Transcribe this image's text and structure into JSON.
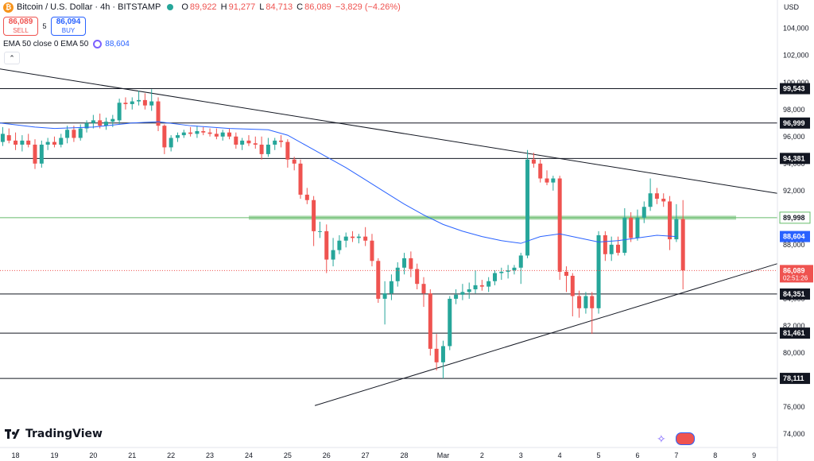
{
  "header": {
    "symbol": "Bitcoin / U.S. Dollar · 4h · BITSTAMP",
    "icon": "bitcoin-icon",
    "ohlc": {
      "o_label": "O",
      "o": "89,922",
      "h_label": "H",
      "h": "91,277",
      "l_label": "L",
      "l": "84,713",
      "c_label": "C",
      "c": "86,089",
      "change": "−3,829 (−4.26%)"
    }
  },
  "trade": {
    "sell_price": "86,089",
    "sell_label": "SELL",
    "spread": "5",
    "buy_price": "86,094",
    "buy_label": "BUY"
  },
  "indicator": {
    "label": "EMA 50 close 0 EMA 50",
    "value": "88,604"
  },
  "currency": "USD",
  "brand": "TradingView",
  "colors": {
    "up": "#26a69a",
    "down": "#ef5350",
    "ema": "#2962ff",
    "support_zone": "#66bb6a"
  },
  "chart_data": {
    "type": "candlestick",
    "x_ticks": [
      {
        "label": "18",
        "x": 0.0
      },
      {
        "label": "19",
        "x": 1.0
      },
      {
        "label": "20",
        "x": 2.0
      },
      {
        "label": "21",
        "x": 3.0
      },
      {
        "label": "22",
        "x": 4.0
      },
      {
        "label": "23",
        "x": 5.0
      },
      {
        "label": "24",
        "x": 6.0
      },
      {
        "label": "25",
        "x": 7.0
      },
      {
        "label": "26",
        "x": 8.0
      },
      {
        "label": "27",
        "x": 9.0
      },
      {
        "label": "28",
        "x": 10.0
      },
      {
        "label": "Mar",
        "x": 11.0
      },
      {
        "label": "2",
        "x": 12.0
      },
      {
        "label": "3",
        "x": 13.0
      },
      {
        "label": "4",
        "x": 14.0
      },
      {
        "label": "5",
        "x": 15.0
      },
      {
        "label": "6",
        "x": 16.0
      },
      {
        "label": "7",
        "x": 17.0
      },
      {
        "label": "8",
        "x": 18.0
      },
      {
        "label": "9",
        "x": 19.0
      }
    ],
    "y_ticks": [
      74000,
      76000,
      78000,
      80000,
      82000,
      84000,
      86000,
      88000,
      90000,
      92000,
      94000,
      96000,
      98000,
      100000,
      102000,
      104000
    ],
    "ylim": [
      73000,
      106100
    ],
    "xlim": [
      -0.4,
      19.6
    ],
    "candles": [
      {
        "x": -0.33,
        "o": 95600,
        "h": 96700,
        "l": 95300,
        "c": 96200
      },
      {
        "x": -0.17,
        "o": 96100,
        "h": 96600,
        "l": 95500,
        "c": 95700
      },
      {
        "x": 0.0,
        "o": 95700,
        "h": 96300,
        "l": 95000,
        "c": 95400
      },
      {
        "x": 0.17,
        "o": 95400,
        "h": 96100,
        "l": 94900,
        "c": 95700
      },
      {
        "x": 0.33,
        "o": 95700,
        "h": 96200,
        "l": 95200,
        "c": 95400
      },
      {
        "x": 0.5,
        "o": 95400,
        "h": 95800,
        "l": 93600,
        "c": 94000
      },
      {
        "x": 0.67,
        "o": 94000,
        "h": 95700,
        "l": 93700,
        "c": 95400
      },
      {
        "x": 0.83,
        "o": 95400,
        "h": 95900,
        "l": 95000,
        "c": 95600
      },
      {
        "x": 1.0,
        "o": 95600,
        "h": 96000,
        "l": 95200,
        "c": 95400
      },
      {
        "x": 1.17,
        "o": 95400,
        "h": 96200,
        "l": 95200,
        "c": 95900
      },
      {
        "x": 1.33,
        "o": 95900,
        "h": 96800,
        "l": 95500,
        "c": 96500
      },
      {
        "x": 1.5,
        "o": 96500,
        "h": 96800,
        "l": 95600,
        "c": 95900
      },
      {
        "x": 1.67,
        "o": 95900,
        "h": 96900,
        "l": 95700,
        "c": 96600
      },
      {
        "x": 1.83,
        "o": 96600,
        "h": 97200,
        "l": 96300,
        "c": 97000
      },
      {
        "x": 2.0,
        "o": 97000,
        "h": 97600,
        "l": 96600,
        "c": 97200
      },
      {
        "x": 2.17,
        "o": 97200,
        "h": 97700,
        "l": 96600,
        "c": 96800
      },
      {
        "x": 2.33,
        "o": 96800,
        "h": 97400,
        "l": 96500,
        "c": 97100
      },
      {
        "x": 2.5,
        "o": 97100,
        "h": 97600,
        "l": 96700,
        "c": 97300
      },
      {
        "x": 2.67,
        "o": 97200,
        "h": 98800,
        "l": 96900,
        "c": 98500
      },
      {
        "x": 2.83,
        "o": 98500,
        "h": 98900,
        "l": 98000,
        "c": 98400
      },
      {
        "x": 3.0,
        "o": 98400,
        "h": 98900,
        "l": 98000,
        "c": 98600
      },
      {
        "x": 3.17,
        "o": 98600,
        "h": 99400,
        "l": 98300,
        "c": 98700
      },
      {
        "x": 3.33,
        "o": 98700,
        "h": 99200,
        "l": 98000,
        "c": 98300
      },
      {
        "x": 3.5,
        "o": 98300,
        "h": 99500,
        "l": 97900,
        "c": 98600
      },
      {
        "x": 3.67,
        "o": 98600,
        "h": 98900,
        "l": 96400,
        "c": 96800
      },
      {
        "x": 3.83,
        "o": 96800,
        "h": 96900,
        "l": 94700,
        "c": 95200
      },
      {
        "x": 4.0,
        "o": 95200,
        "h": 96100,
        "l": 94900,
        "c": 95900
      },
      {
        "x": 4.17,
        "o": 95900,
        "h": 96300,
        "l": 95600,
        "c": 96100
      },
      {
        "x": 4.33,
        "o": 96100,
        "h": 96500,
        "l": 95900,
        "c": 96300
      },
      {
        "x": 4.5,
        "o": 96300,
        "h": 96700,
        "l": 96000,
        "c": 96200
      },
      {
        "x": 4.67,
        "o": 96200,
        "h": 96800,
        "l": 95900,
        "c": 96400
      },
      {
        "x": 4.83,
        "o": 96400,
        "h": 96700,
        "l": 96100,
        "c": 96300
      },
      {
        "x": 5.0,
        "o": 96300,
        "h": 96600,
        "l": 96000,
        "c": 96200
      },
      {
        "x": 5.17,
        "o": 96200,
        "h": 96600,
        "l": 95800,
        "c": 96000
      },
      {
        "x": 5.33,
        "o": 96000,
        "h": 96500,
        "l": 95700,
        "c": 96300
      },
      {
        "x": 5.5,
        "o": 96300,
        "h": 96600,
        "l": 95800,
        "c": 96000
      },
      {
        "x": 5.67,
        "o": 96000,
        "h": 96300,
        "l": 95100,
        "c": 95400
      },
      {
        "x": 5.83,
        "o": 95400,
        "h": 95900,
        "l": 95000,
        "c": 95700
      },
      {
        "x": 6.0,
        "o": 95700,
        "h": 96100,
        "l": 95300,
        "c": 95500
      },
      {
        "x": 6.17,
        "o": 95500,
        "h": 96000,
        "l": 95100,
        "c": 95400
      },
      {
        "x": 6.33,
        "o": 95400,
        "h": 96000,
        "l": 94300,
        "c": 94700
      },
      {
        "x": 6.5,
        "o": 94700,
        "h": 95900,
        "l": 94500,
        "c": 95400
      },
      {
        "x": 6.67,
        "o": 95400,
        "h": 95900,
        "l": 95000,
        "c": 95700
      },
      {
        "x": 6.83,
        "o": 95700,
        "h": 96100,
        "l": 95200,
        "c": 95600
      },
      {
        "x": 7.0,
        "o": 95600,
        "h": 95800,
        "l": 93700,
        "c": 94300
      },
      {
        "x": 7.17,
        "o": 94300,
        "h": 94500,
        "l": 93500,
        "c": 94000
      },
      {
        "x": 7.33,
        "o": 94000,
        "h": 94300,
        "l": 91400,
        "c": 91700
      },
      {
        "x": 7.5,
        "o": 91700,
        "h": 92200,
        "l": 91000,
        "c": 91300
      },
      {
        "x": 7.67,
        "o": 91300,
        "h": 91600,
        "l": 87900,
        "c": 89000
      },
      {
        "x": 7.83,
        "o": 89000,
        "h": 89700,
        "l": 88500,
        "c": 89000
      },
      {
        "x": 8.0,
        "o": 89000,
        "h": 89500,
        "l": 85900,
        "c": 86900
      },
      {
        "x": 8.17,
        "o": 86900,
        "h": 88500,
        "l": 86400,
        "c": 87600
      },
      {
        "x": 8.33,
        "o": 87600,
        "h": 88700,
        "l": 87300,
        "c": 88300
      },
      {
        "x": 8.5,
        "o": 88300,
        "h": 88900,
        "l": 87800,
        "c": 88600
      },
      {
        "x": 8.67,
        "o": 88600,
        "h": 89000,
        "l": 88200,
        "c": 88500
      },
      {
        "x": 8.83,
        "o": 88500,
        "h": 88800,
        "l": 88100,
        "c": 88600
      },
      {
        "x": 9.0,
        "o": 88600,
        "h": 89300,
        "l": 87900,
        "c": 88300
      },
      {
        "x": 9.17,
        "o": 88300,
        "h": 88800,
        "l": 86400,
        "c": 86800
      },
      {
        "x": 9.33,
        "o": 86800,
        "h": 87000,
        "l": 83700,
        "c": 84000
      },
      {
        "x": 9.5,
        "o": 84000,
        "h": 85300,
        "l": 82100,
        "c": 84400
      },
      {
        "x": 9.67,
        "o": 84400,
        "h": 85800,
        "l": 83900,
        "c": 85300
      },
      {
        "x": 9.83,
        "o": 85300,
        "h": 86700,
        "l": 84900,
        "c": 86300
      },
      {
        "x": 10.0,
        "o": 86300,
        "h": 87400,
        "l": 85800,
        "c": 87000
      },
      {
        "x": 10.17,
        "o": 87000,
        "h": 87500,
        "l": 85600,
        "c": 86200
      },
      {
        "x": 10.33,
        "o": 86200,
        "h": 86600,
        "l": 84700,
        "c": 85100
      },
      {
        "x": 10.5,
        "o": 85100,
        "h": 85600,
        "l": 83400,
        "c": 84400
      },
      {
        "x": 10.67,
        "o": 84400,
        "h": 84700,
        "l": 79800,
        "c": 80300
      },
      {
        "x": 10.83,
        "o": 80300,
        "h": 81400,
        "l": 78700,
        "c": 79300
      },
      {
        "x": 11.0,
        "o": 79300,
        "h": 80900,
        "l": 78100,
        "c": 80500
      },
      {
        "x": 11.17,
        "o": 80500,
        "h": 84200,
        "l": 80200,
        "c": 84000
      },
      {
        "x": 11.33,
        "o": 84000,
        "h": 84700,
        "l": 83600,
        "c": 84300
      },
      {
        "x": 11.5,
        "o": 84300,
        "h": 85100,
        "l": 83900,
        "c": 84500
      },
      {
        "x": 11.67,
        "o": 84500,
        "h": 85200,
        "l": 84000,
        "c": 84700
      },
      {
        "x": 11.83,
        "o": 84700,
        "h": 86100,
        "l": 84400,
        "c": 85000
      },
      {
        "x": 12.0,
        "o": 85000,
        "h": 85400,
        "l": 84600,
        "c": 84900
      },
      {
        "x": 12.17,
        "o": 84900,
        "h": 85600,
        "l": 84500,
        "c": 85300
      },
      {
        "x": 12.33,
        "o": 85300,
        "h": 86100,
        "l": 85000,
        "c": 85900
      },
      {
        "x": 12.5,
        "o": 85900,
        "h": 86300,
        "l": 85400,
        "c": 86000
      },
      {
        "x": 12.67,
        "o": 86000,
        "h": 86500,
        "l": 85500,
        "c": 86100
      },
      {
        "x": 12.83,
        "o": 86100,
        "h": 86500,
        "l": 85800,
        "c": 86300
      },
      {
        "x": 13.0,
        "o": 86300,
        "h": 87400,
        "l": 85100,
        "c": 87200
      },
      {
        "x": 13.17,
        "o": 87200,
        "h": 95000,
        "l": 87000,
        "c": 94300
      },
      {
        "x": 13.33,
        "o": 94300,
        "h": 94800,
        "l": 93700,
        "c": 94000
      },
      {
        "x": 13.5,
        "o": 94000,
        "h": 94300,
        "l": 92600,
        "c": 92900
      },
      {
        "x": 13.67,
        "o": 92900,
        "h": 93500,
        "l": 92400,
        "c": 92600
      },
      {
        "x": 13.83,
        "o": 92600,
        "h": 93100,
        "l": 92000,
        "c": 92900
      },
      {
        "x": 14.0,
        "o": 92900,
        "h": 93100,
        "l": 85400,
        "c": 86000
      },
      {
        "x": 14.17,
        "o": 86000,
        "h": 86400,
        "l": 84500,
        "c": 85700
      },
      {
        "x": 14.33,
        "o": 85700,
        "h": 85900,
        "l": 82700,
        "c": 84200
      },
      {
        "x": 14.5,
        "o": 84200,
        "h": 84600,
        "l": 82600,
        "c": 83300
      },
      {
        "x": 14.67,
        "o": 83300,
        "h": 84500,
        "l": 82900,
        "c": 84200
      },
      {
        "x": 14.83,
        "o": 84200,
        "h": 84500,
        "l": 81400,
        "c": 83300
      },
      {
        "x": 15.0,
        "o": 83300,
        "h": 89000,
        "l": 82900,
        "c": 88700
      },
      {
        "x": 15.17,
        "o": 88700,
        "h": 89000,
        "l": 86800,
        "c": 87300
      },
      {
        "x": 15.33,
        "o": 87300,
        "h": 88600,
        "l": 86800,
        "c": 88000
      },
      {
        "x": 15.5,
        "o": 88000,
        "h": 88600,
        "l": 87200,
        "c": 87400
      },
      {
        "x": 15.67,
        "o": 87400,
        "h": 90700,
        "l": 87200,
        "c": 90000
      },
      {
        "x": 15.83,
        "o": 90000,
        "h": 90400,
        "l": 88200,
        "c": 88500
      },
      {
        "x": 16.0,
        "o": 88500,
        "h": 90600,
        "l": 88300,
        "c": 90000
      },
      {
        "x": 16.17,
        "o": 90000,
        "h": 91200,
        "l": 89600,
        "c": 90800
      },
      {
        "x": 16.33,
        "o": 90800,
        "h": 92900,
        "l": 90500,
        "c": 91800
      },
      {
        "x": 16.5,
        "o": 91800,
        "h": 92200,
        "l": 91000,
        "c": 91400
      },
      {
        "x": 16.67,
        "o": 91400,
        "h": 91800,
        "l": 90800,
        "c": 91200
      },
      {
        "x": 16.83,
        "o": 91200,
        "h": 91600,
        "l": 87600,
        "c": 88400
      },
      {
        "x": 17.0,
        "o": 88400,
        "h": 91000,
        "l": 88200,
        "c": 89900
      },
      {
        "x": 17.17,
        "o": 89900,
        "h": 91300,
        "l": 84700,
        "c": 86100
      }
    ],
    "ema50": [
      {
        "x": -0.4,
        "y": 97000
      },
      {
        "x": 0.5,
        "y": 96700
      },
      {
        "x": 1.0,
        "y": 96600
      },
      {
        "x": 2.0,
        "y": 96700
      },
      {
        "x": 3.0,
        "y": 97000
      },
      {
        "x": 3.67,
        "y": 97100
      },
      {
        "x": 4.5,
        "y": 96800
      },
      {
        "x": 5.5,
        "y": 96600
      },
      {
        "x": 6.5,
        "y": 96500
      },
      {
        "x": 7.0,
        "y": 96100
      },
      {
        "x": 7.5,
        "y": 95300
      },
      {
        "x": 8.0,
        "y": 94500
      },
      {
        "x": 8.5,
        "y": 93700
      },
      {
        "x": 9.0,
        "y": 92800
      },
      {
        "x": 9.5,
        "y": 91900
      },
      {
        "x": 10.0,
        "y": 91000
      },
      {
        "x": 10.5,
        "y": 90200
      },
      {
        "x": 11.0,
        "y": 89500
      },
      {
        "x": 11.5,
        "y": 89000
      },
      {
        "x": 12.0,
        "y": 88600
      },
      {
        "x": 12.5,
        "y": 88300
      },
      {
        "x": 13.0,
        "y": 88100
      },
      {
        "x": 13.5,
        "y": 88600
      },
      {
        "x": 14.0,
        "y": 88800
      },
      {
        "x": 14.5,
        "y": 88500
      },
      {
        "x": 15.0,
        "y": 88200
      },
      {
        "x": 15.5,
        "y": 88300
      },
      {
        "x": 16.0,
        "y": 88500
      },
      {
        "x": 16.5,
        "y": 88700
      },
      {
        "x": 17.0,
        "y": 88600
      }
    ],
    "horizontal_levels": [
      {
        "value": 99543,
        "label": "99,543"
      },
      {
        "value": 96999,
        "label": "96,999"
      },
      {
        "value": 94381,
        "label": "94,381"
      },
      {
        "value": 84351,
        "label": "84,351"
      },
      {
        "value": 81461,
        "label": "81,461"
      },
      {
        "value": 78111,
        "label": "78,111"
      }
    ],
    "support_zone": {
      "value": 89998,
      "label": "89,998",
      "x_start": 6.0
    },
    "trendlines": [
      {
        "x1": -0.4,
        "y1": 101000,
        "x2": 19.6,
        "y2": 91800
      },
      {
        "x1": 7.7,
        "y1": 76100,
        "x2": 19.6,
        "y2": 86600
      }
    ],
    "ema_label": {
      "value": 88604,
      "label": "88,604"
    },
    "last_price": {
      "value": 86089,
      "label": "86,089",
      "countdown": "02:51:26"
    }
  }
}
